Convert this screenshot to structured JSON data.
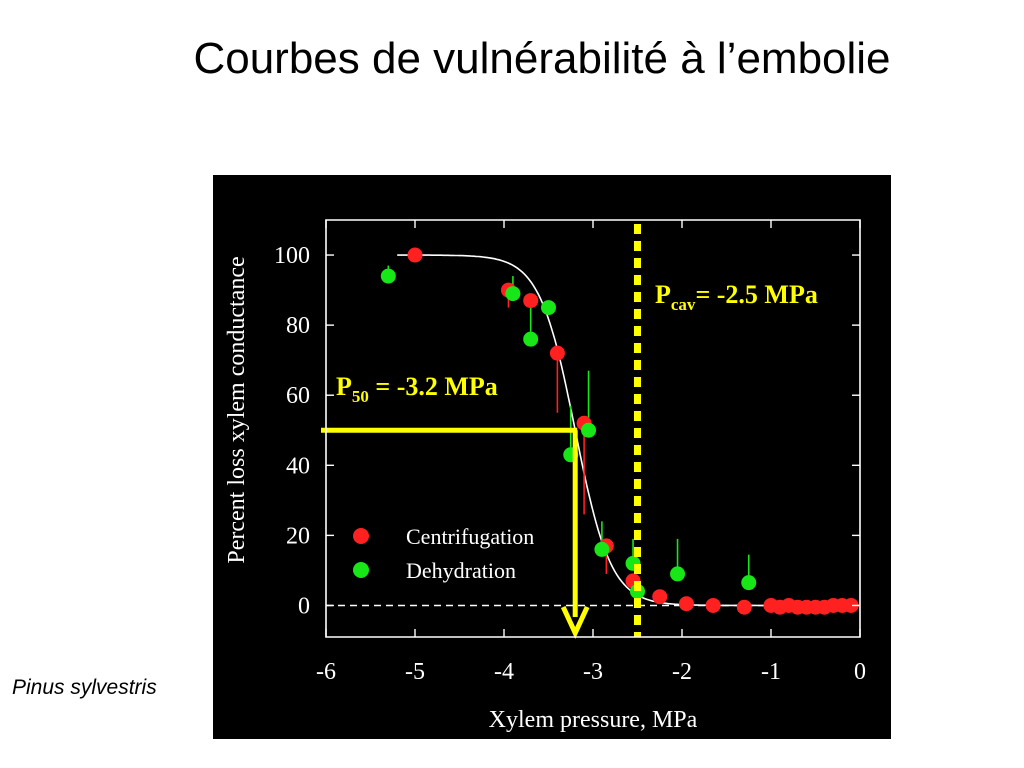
{
  "slide": {
    "title": "Courbes de vulnérabilité à l’embolie",
    "species": "Pinus sylvestris"
  },
  "colors": {
    "background": "#000000",
    "centrifugation": "#ff2020",
    "dehydration": "#17e617",
    "highlight": "#ffff00",
    "fit_curve": "#ffffff"
  },
  "chart_data": {
    "type": "scatter",
    "title": "",
    "xlabel": "Xylem pressure, MPa",
    "ylabel": "Percent loss xylem conductance",
    "xlim": [
      -6,
      0
    ],
    "ylim": [
      -9,
      110
    ],
    "xticks": [
      -6,
      -5,
      -4,
      -3,
      -2,
      -1,
      0
    ],
    "yticks": [
      0,
      20,
      40,
      60,
      80,
      100
    ],
    "grid": false,
    "legend_position": "lower-left",
    "series": [
      {
        "name": "Centrifugation",
        "color": "#ff2020",
        "points": [
          {
            "x": -5.0,
            "y": 100
          },
          {
            "x": -3.95,
            "y": 90,
            "err_low": 5
          },
          {
            "x": -3.7,
            "y": 87,
            "err_low": 4
          },
          {
            "x": -3.4,
            "y": 72,
            "err_low": 17
          },
          {
            "x": -3.1,
            "y": 52,
            "err_low": 26
          },
          {
            "x": -2.85,
            "y": 17,
            "err_low": 8
          },
          {
            "x": -2.55,
            "y": 7
          },
          {
            "x": -2.25,
            "y": 2.5
          },
          {
            "x": -1.95,
            "y": 0.5
          },
          {
            "x": -1.65,
            "y": 0
          },
          {
            "x": -1.3,
            "y": -0.5
          },
          {
            "x": -1.0,
            "y": 0
          },
          {
            "x": -0.9,
            "y": -0.5
          },
          {
            "x": -0.8,
            "y": 0
          },
          {
            "x": -0.7,
            "y": -0.5
          },
          {
            "x": -0.6,
            "y": -0.5
          },
          {
            "x": -0.5,
            "y": -0.5
          },
          {
            "x": -0.4,
            "y": -0.5
          },
          {
            "x": -0.3,
            "y": 0
          },
          {
            "x": -0.2,
            "y": 0
          },
          {
            "x": -0.1,
            "y": 0
          }
        ]
      },
      {
        "name": "Dehydration",
        "color": "#17e617",
        "points": [
          {
            "x": -5.3,
            "y": 94,
            "err_high": 3
          },
          {
            "x": -3.9,
            "y": 89,
            "err_high": 5
          },
          {
            "x": -3.7,
            "y": 76,
            "err_high": 12
          },
          {
            "x": -3.5,
            "y": 85
          },
          {
            "x": -3.25,
            "y": 43,
            "err_high": 14
          },
          {
            "x": -3.05,
            "y": 50,
            "err_high": 17
          },
          {
            "x": -2.9,
            "y": 16,
            "err_high": 8
          },
          {
            "x": -2.55,
            "y": 12,
            "err_high": 7
          },
          {
            "x": -2.5,
            "y": 4
          },
          {
            "x": -2.05,
            "y": 9,
            "err_high": 10
          },
          {
            "x": -1.25,
            "y": 6.5,
            "err_high": 8
          }
        ]
      }
    ],
    "fit_curve": {
      "p50": -3.2,
      "slope": 5.0,
      "color": "#ffffff"
    },
    "annotations": {
      "p50": {
        "label_main": "P",
        "label_sub": "50",
        "label_rest": " = -3.2 MPa",
        "x": -3.2,
        "y": 50
      },
      "pcav": {
        "label_main": "P",
        "label_sub": "cav",
        "label_rest": "= -2.5 MPa",
        "x": -2.5
      }
    }
  }
}
